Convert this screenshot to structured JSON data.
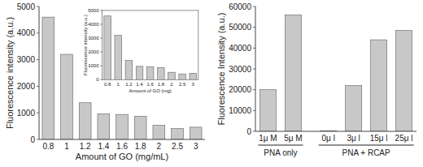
{
  "chart_data": [
    {
      "type": "bar",
      "categories": [
        "0.8",
        "1",
        "1.2",
        "1.4",
        "1.6",
        "1.8",
        "2",
        "2.5",
        "3"
      ],
      "values": [
        4600,
        3200,
        1380,
        960,
        940,
        870,
        530,
        410,
        460
      ],
      "color": "#c8c8c8",
      "xlabel": "Amount of GO (mg/mL)",
      "ylabel": "Fluorescence intensity (a.u.)",
      "ylim": [
        0,
        5000
      ],
      "yticks": [
        0,
        1000,
        2000,
        3000,
        4000,
        5000
      ]
    },
    {
      "type": "bar",
      "categories": [
        "0.8",
        "1",
        "1.2",
        "1.4",
        "1.6",
        "1.8",
        "2",
        "2.5",
        "3"
      ],
      "values": [
        4600,
        3200,
        1380,
        960,
        940,
        870,
        530,
        410,
        460
      ],
      "color": "#c8c8c8",
      "xlabel": "Amount of GO (mg)",
      "ylabel": "Fluorescence intensity (a.u.)",
      "ylim": [
        0,
        5000
      ],
      "yticks": [
        0,
        1000,
        2000,
        3000,
        4000,
        5000
      ]
    },
    {
      "type": "bar",
      "categories": [
        "1μ M",
        "5μ M",
        "0μ l",
        "3μ l",
        "15μ l",
        "25μ l"
      ],
      "values": [
        20000,
        56000,
        300,
        22000,
        44000,
        48500
      ],
      "color": "#c8c8c8",
      "ylabel": "Fluorescence Intensity (a.u.)",
      "ylim": [
        0,
        60000
      ],
      "yticks": [
        0,
        10000,
        20000,
        30000,
        40000,
        50000,
        60000
      ],
      "annotations": [
        {
          "text": "PNA only",
          "categories": [
            "1μ M",
            "5μ M"
          ]
        },
        {
          "text": "PNA + RCAP",
          "categories": [
            "0μ l",
            "3μ l",
            "15μ l",
            "25μ l"
          ]
        }
      ]
    }
  ]
}
